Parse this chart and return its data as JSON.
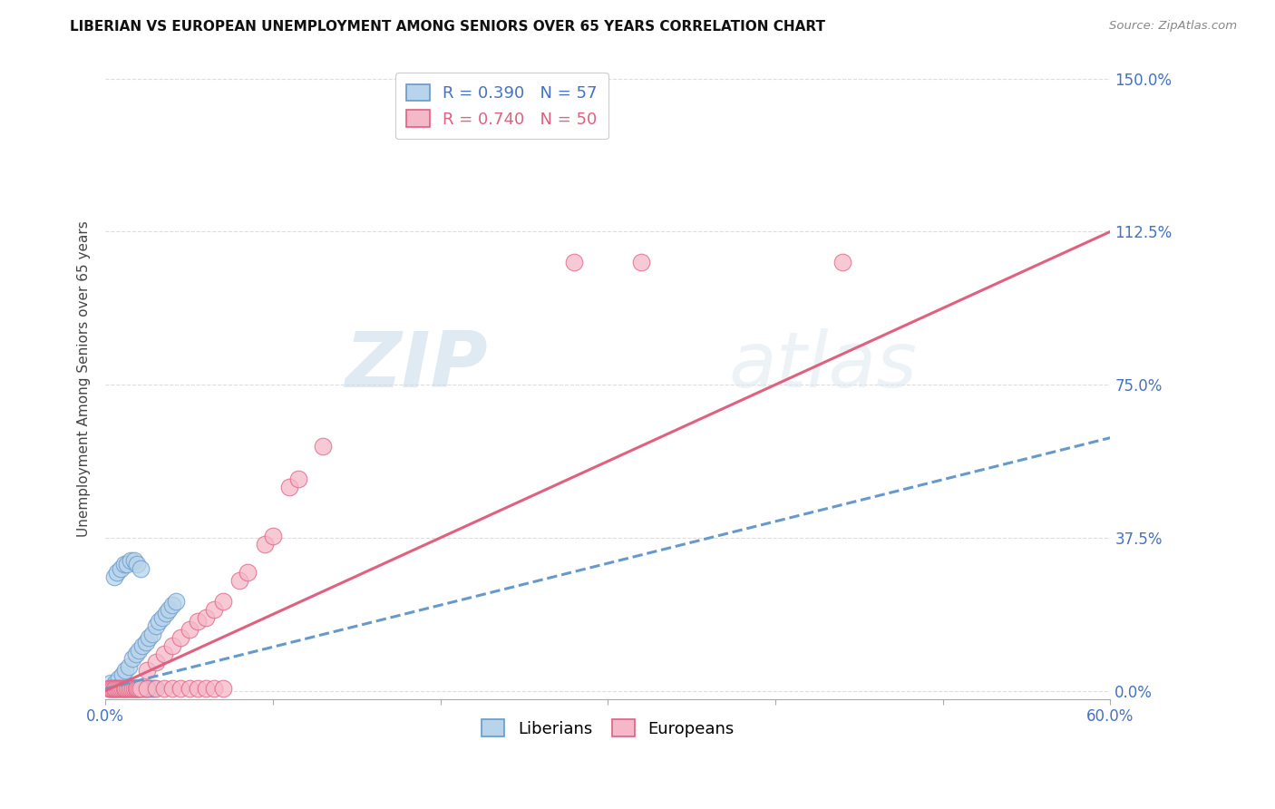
{
  "title": "LIBERIAN VS EUROPEAN UNEMPLOYMENT AMONG SENIORS OVER 65 YEARS CORRELATION CHART",
  "source": "Source: ZipAtlas.com",
  "ylabel": "Unemployment Among Seniors over 65 years",
  "liberian_R": 0.39,
  "liberian_N": 57,
  "european_R": 0.74,
  "european_N": 50,
  "liberian_color": "#b8d4ea",
  "liberian_edge_color": "#6699cc",
  "european_color": "#f5b8c8",
  "european_edge_color": "#e06080",
  "watermark_zip": "ZIP",
  "watermark_atlas": "atlas",
  "liberian_points": [
    [
      0.002,
      0.005
    ],
    [
      0.003,
      0.005
    ],
    [
      0.004,
      0.005
    ],
    [
      0.005,
      0.005
    ],
    [
      0.006,
      0.005
    ],
    [
      0.007,
      0.005
    ],
    [
      0.008,
      0.005
    ],
    [
      0.009,
      0.005
    ],
    [
      0.01,
      0.005
    ],
    [
      0.011,
      0.005
    ],
    [
      0.012,
      0.005
    ],
    [
      0.013,
      0.005
    ],
    [
      0.014,
      0.005
    ],
    [
      0.015,
      0.005
    ],
    [
      0.016,
      0.005
    ],
    [
      0.017,
      0.005
    ],
    [
      0.018,
      0.005
    ],
    [
      0.019,
      0.005
    ],
    [
      0.02,
      0.005
    ],
    [
      0.021,
      0.005
    ],
    [
      0.022,
      0.005
    ],
    [
      0.023,
      0.005
    ],
    [
      0.024,
      0.005
    ],
    [
      0.025,
      0.005
    ],
    [
      0.026,
      0.005
    ],
    [
      0.027,
      0.005
    ],
    [
      0.028,
      0.005
    ],
    [
      0.029,
      0.005
    ],
    [
      0.003,
      0.02
    ],
    [
      0.006,
      0.02
    ],
    [
      0.008,
      0.03
    ],
    [
      0.01,
      0.04
    ],
    [
      0.012,
      0.05
    ],
    [
      0.014,
      0.06
    ],
    [
      0.016,
      0.08
    ],
    [
      0.018,
      0.09
    ],
    [
      0.02,
      0.1
    ],
    [
      0.022,
      0.11
    ],
    [
      0.024,
      0.12
    ],
    [
      0.026,
      0.13
    ],
    [
      0.028,
      0.14
    ],
    [
      0.03,
      0.16
    ],
    [
      0.032,
      0.17
    ],
    [
      0.034,
      0.18
    ],
    [
      0.036,
      0.19
    ],
    [
      0.038,
      0.2
    ],
    [
      0.04,
      0.21
    ],
    [
      0.042,
      0.22
    ],
    [
      0.005,
      0.28
    ],
    [
      0.007,
      0.29
    ],
    [
      0.009,
      0.3
    ],
    [
      0.011,
      0.31
    ],
    [
      0.013,
      0.31
    ],
    [
      0.015,
      0.32
    ],
    [
      0.017,
      0.32
    ],
    [
      0.019,
      0.31
    ],
    [
      0.021,
      0.3
    ]
  ],
  "european_points": [
    [
      0.002,
      0.005
    ],
    [
      0.003,
      0.005
    ],
    [
      0.004,
      0.005
    ],
    [
      0.005,
      0.005
    ],
    [
      0.006,
      0.005
    ],
    [
      0.007,
      0.005
    ],
    [
      0.008,
      0.005
    ],
    [
      0.009,
      0.005
    ],
    [
      0.01,
      0.005
    ],
    [
      0.011,
      0.005
    ],
    [
      0.012,
      0.005
    ],
    [
      0.013,
      0.005
    ],
    [
      0.014,
      0.005
    ],
    [
      0.015,
      0.005
    ],
    [
      0.016,
      0.005
    ],
    [
      0.017,
      0.005
    ],
    [
      0.018,
      0.005
    ],
    [
      0.019,
      0.005
    ],
    [
      0.02,
      0.005
    ],
    [
      0.021,
      0.005
    ],
    [
      0.025,
      0.005
    ],
    [
      0.03,
      0.005
    ],
    [
      0.035,
      0.005
    ],
    [
      0.04,
      0.005
    ],
    [
      0.045,
      0.005
    ],
    [
      0.05,
      0.005
    ],
    [
      0.055,
      0.005
    ],
    [
      0.06,
      0.005
    ],
    [
      0.065,
      0.005
    ],
    [
      0.07,
      0.005
    ],
    [
      0.025,
      0.05
    ],
    [
      0.03,
      0.07
    ],
    [
      0.035,
      0.09
    ],
    [
      0.04,
      0.11
    ],
    [
      0.045,
      0.13
    ],
    [
      0.05,
      0.15
    ],
    [
      0.055,
      0.17
    ],
    [
      0.06,
      0.18
    ],
    [
      0.065,
      0.2
    ],
    [
      0.07,
      0.22
    ],
    [
      0.08,
      0.27
    ],
    [
      0.085,
      0.29
    ],
    [
      0.11,
      0.5
    ],
    [
      0.115,
      0.52
    ],
    [
      0.13,
      0.6
    ],
    [
      0.095,
      0.36
    ],
    [
      0.1,
      0.38
    ],
    [
      0.28,
      1.05
    ],
    [
      0.32,
      1.05
    ],
    [
      0.44,
      1.05
    ]
  ],
  "liberian_trend": [
    0.0,
    0.06,
    0.6
  ],
  "liberian_trend_y": [
    0.005,
    0.02,
    0.62
  ],
  "european_trend": [
    0.0,
    0.6
  ],
  "european_trend_y": [
    0.0,
    1.125
  ],
  "xlim": [
    0.0,
    0.6
  ],
  "ylim": [
    -0.02,
    1.55
  ],
  "x_ticks": [
    0.0,
    0.1,
    0.2,
    0.3,
    0.4,
    0.5,
    0.6
  ],
  "x_tick_labels": [
    "0.0%",
    "",
    "",
    "",
    "",
    "",
    "60.0%"
  ],
  "y_ticks": [
    0.0,
    0.375,
    0.75,
    1.125,
    1.5
  ],
  "y_tick_labels": [
    "0.0%",
    "37.5%",
    "75.0%",
    "112.5%",
    "150.0%"
  ],
  "tick_color": "#4472c4",
  "grid_color": "#dddddd",
  "title_fontsize": 11,
  "axis_label_fontsize": 11,
  "tick_fontsize": 12
}
